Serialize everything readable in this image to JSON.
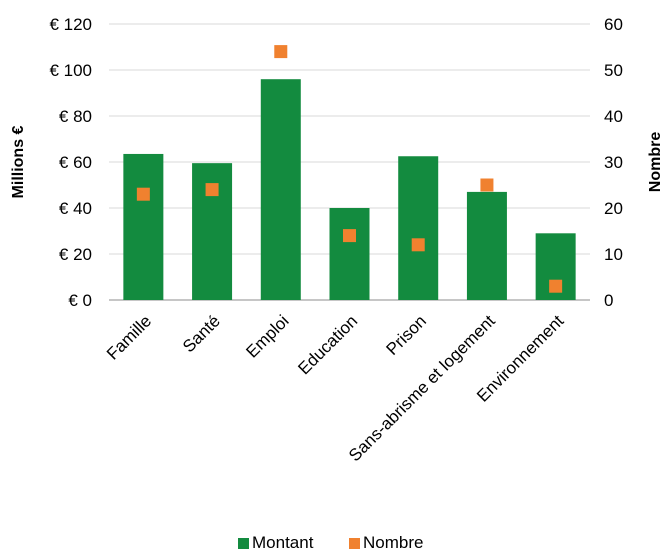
{
  "chart_data": {
    "type": "bar",
    "categories": [
      "Famille",
      "Santé",
      "Emploi",
      "Education",
      "Prison",
      "Sans-abrisme et logement",
      "Environnement"
    ],
    "series": [
      {
        "name": "Montant",
        "type": "bar",
        "axis": "left",
        "color": "#138B3F",
        "values": [
          63.5,
          59.5,
          96,
          40,
          62.5,
          47,
          29
        ]
      },
      {
        "name": "Nombre",
        "type": "scatter",
        "axis": "right",
        "color": "#F0812F",
        "values": [
          23,
          24,
          54,
          14,
          12,
          25,
          3
        ]
      }
    ],
    "ylabel": "Millions €",
    "y2label": "Nombre",
    "ylim": [
      0,
      120
    ],
    "y2lim": [
      0,
      60
    ],
    "yticks": [
      "€ 0",
      "€ 20",
      "€ 40",
      "€ 60",
      "€ 80",
      "€ 100",
      "€ 120"
    ],
    "y2ticks": [
      "0",
      "10",
      "20",
      "30",
      "40",
      "50",
      "60"
    ],
    "grid": true,
    "legend": "bottom"
  }
}
